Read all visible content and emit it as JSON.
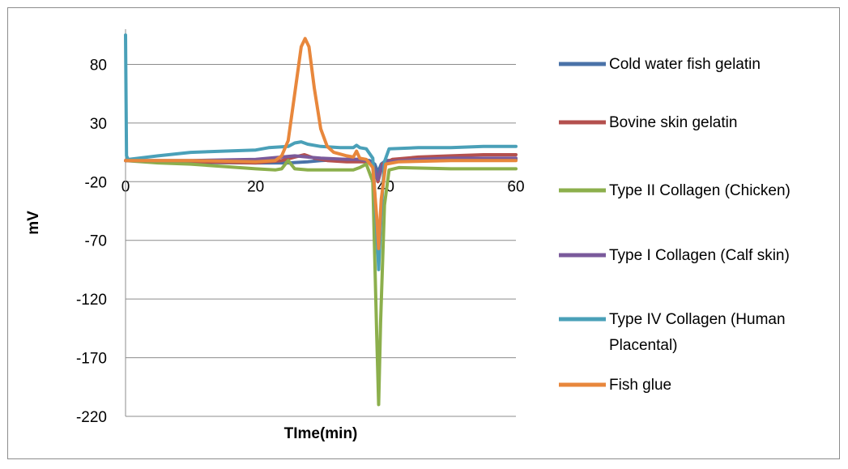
{
  "chart_data": {
    "type": "line",
    "title": "",
    "xlabel": "TIme(min)",
    "ylabel": "mV",
    "xlim": [
      0,
      60
    ],
    "ylim": [
      -220,
      110
    ],
    "x_ticks": [
      "0",
      "20",
      "40",
      "60"
    ],
    "y_ticks": [
      "80",
      "30",
      "-20",
      "-70",
      "-120",
      "-170",
      "-220"
    ],
    "grid": "horizontal",
    "legend_placement": "right",
    "series": [
      {
        "name": "Cold water fish gelatin",
        "color": "#4a72a8",
        "points": [
          [
            0,
            -2
          ],
          [
            5,
            -3
          ],
          [
            10,
            -3.5
          ],
          [
            20,
            -4
          ],
          [
            25,
            -4
          ],
          [
            28,
            -3
          ],
          [
            30,
            -2
          ],
          [
            34,
            -1
          ],
          [
            36,
            -1
          ],
          [
            37.5,
            -2
          ],
          [
            38.3,
            -5
          ],
          [
            38.8,
            -12
          ],
          [
            39.3,
            -5
          ],
          [
            40,
            -2
          ],
          [
            45,
            -1
          ],
          [
            50,
            -1
          ],
          [
            55,
            -1
          ],
          [
            60,
            -1
          ]
        ]
      },
      {
        "name": "Bovine skin gelatin",
        "color": "#b4504e",
        "points": [
          [
            0,
            -2
          ],
          [
            5,
            -2.5
          ],
          [
            10,
            -3
          ],
          [
            20,
            -4
          ],
          [
            24,
            -2
          ],
          [
            26,
            1
          ],
          [
            27.5,
            3
          ],
          [
            29,
            0
          ],
          [
            31,
            -2
          ],
          [
            34,
            -3
          ],
          [
            37,
            -3
          ],
          [
            38,
            -5
          ],
          [
            38.8,
            -20
          ],
          [
            39.5,
            -5
          ],
          [
            41,
            -1
          ],
          [
            45,
            1
          ],
          [
            50,
            2
          ],
          [
            55,
            3
          ],
          [
            60,
            3
          ]
        ]
      },
      {
        "name": "Type II Collagen (Chicken)",
        "color": "#8caf4c",
        "points": [
          [
            0,
            -2
          ],
          [
            5,
            -4
          ],
          [
            10,
            -5
          ],
          [
            15,
            -7
          ],
          [
            20,
            -9
          ],
          [
            23,
            -10
          ],
          [
            24,
            -9
          ],
          [
            25,
            -2
          ],
          [
            26,
            -9
          ],
          [
            28,
            -10
          ],
          [
            32,
            -10
          ],
          [
            35,
            -10
          ],
          [
            36,
            -8
          ],
          [
            37,
            -5
          ],
          [
            38,
            -20
          ],
          [
            38.6,
            -150
          ],
          [
            38.9,
            -210
          ],
          [
            39.2,
            -140
          ],
          [
            39.8,
            -40
          ],
          [
            40.5,
            -10
          ],
          [
            42,
            -8
          ],
          [
            50,
            -9
          ],
          [
            60,
            -9
          ]
        ]
      },
      {
        "name": "Type I Collagen (Calf skin)",
        "color": "#7a5a9b",
        "points": [
          [
            0,
            -2
          ],
          [
            10,
            -2
          ],
          [
            20,
            -1
          ],
          [
            24,
            1
          ],
          [
            26,
            2
          ],
          [
            28,
            1
          ],
          [
            30,
            0
          ],
          [
            34,
            -1
          ],
          [
            36,
            -1
          ],
          [
            37.5,
            -3
          ],
          [
            38.3,
            -10
          ],
          [
            38.8,
            -18
          ],
          [
            39.3,
            -8
          ],
          [
            40,
            -3
          ],
          [
            45,
            -1
          ],
          [
            50,
            0
          ],
          [
            60,
            0
          ]
        ]
      },
      {
        "name": "Type IV Collagen (Human Placental)",
        "color": "#4aa0b8",
        "points": [
          [
            0,
            105
          ],
          [
            0.15,
            2
          ],
          [
            0.4,
            -1
          ],
          [
            5,
            2
          ],
          [
            10,
            5
          ],
          [
            15,
            6
          ],
          [
            20,
            7
          ],
          [
            22,
            9
          ],
          [
            25,
            10
          ],
          [
            26,
            13
          ],
          [
            27,
            14
          ],
          [
            28,
            12
          ],
          [
            30,
            10
          ],
          [
            33,
            9
          ],
          [
            35,
            9
          ],
          [
            35.5,
            11
          ],
          [
            36,
            9
          ],
          [
            37,
            8
          ],
          [
            38,
            0
          ],
          [
            38.6,
            -60
          ],
          [
            38.9,
            -95
          ],
          [
            39.3,
            -45
          ],
          [
            39.8,
            -3
          ],
          [
            40.5,
            8
          ],
          [
            45,
            9
          ],
          [
            50,
            9
          ],
          [
            55,
            10
          ],
          [
            60,
            10
          ]
        ]
      },
      {
        "name": "Fish glue",
        "color": "#e8873c",
        "points": [
          [
            0,
            -2
          ],
          [
            10,
            -2
          ],
          [
            20,
            -3
          ],
          [
            23,
            -2
          ],
          [
            24,
            2
          ],
          [
            25,
            15
          ],
          [
            26,
            55
          ],
          [
            27,
            95
          ],
          [
            27.6,
            102
          ],
          [
            28.2,
            95
          ],
          [
            29,
            60
          ],
          [
            30,
            25
          ],
          [
            31,
            10
          ],
          [
            32,
            5
          ],
          [
            34,
            2
          ],
          [
            35,
            1
          ],
          [
            35.5,
            6
          ],
          [
            36,
            0
          ],
          [
            37,
            -1
          ],
          [
            38,
            -8
          ],
          [
            38.6,
            -50
          ],
          [
            38.9,
            -77
          ],
          [
            39.3,
            -35
          ],
          [
            40,
            -5
          ],
          [
            42,
            -3
          ],
          [
            50,
            -2
          ],
          [
            60,
            -2
          ]
        ]
      }
    ]
  }
}
